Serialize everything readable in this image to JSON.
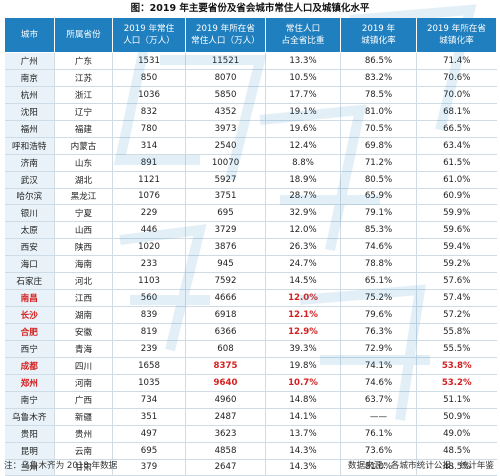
{
  "title": "图：2019 年主要省份及省会城市常住人口及城镇化水平",
  "headers": [
    "城市",
    "所属省份",
    "2019 年常住\n人口（万人）",
    "2019 年所在省\n常住人口（万人）",
    "常住人口\n占全省比重",
    "2019 年\n城镇化率",
    "2019 年所在省\n城镇化率"
  ],
  "rows": [
    [
      "广州",
      "广东",
      "1531",
      "11521",
      "13.3%",
      "86.5%",
      "71.4%"
    ],
    [
      "南京",
      "江苏",
      "850",
      "8070",
      "10.5%",
      "83.2%",
      "70.6%"
    ],
    [
      "杭州",
      "浙江",
      "1036",
      "5850",
      "17.7%",
      "78.5%",
      "70.0%"
    ],
    [
      "沈阳",
      "辽宁",
      "832",
      "4352",
      "19.1%",
      "81.0%",
      "68.1%"
    ],
    [
      "福州",
      "福建",
      "780",
      "3973",
      "19.6%",
      "70.5%",
      "66.5%"
    ],
    [
      "呼和浩特",
      "内蒙古",
      "314",
      "2540",
      "12.4%",
      "69.8%",
      "63.4%"
    ],
    [
      "济南",
      "山东",
      "891",
      "10070",
      "8.8%",
      "71.2%",
      "61.5%"
    ],
    [
      "武汉",
      "湖北",
      "1121",
      "5927",
      "18.9%",
      "80.5%",
      "61.0%"
    ],
    [
      "哈尔滨",
      "黑龙江",
      "1076",
      "3751",
      "28.7%",
      "65.9%",
      "60.9%"
    ],
    [
      "银川",
      "宁夏",
      "229",
      "695",
      "32.9%",
      "79.1%",
      "59.9%"
    ],
    [
      "太原",
      "山西",
      "446",
      "3729",
      "12.0%",
      "85.3%",
      "59.6%"
    ],
    [
      "西安",
      "陕西",
      "1020",
      "3876",
      "26.3%",
      "74.6%",
      "59.4%"
    ],
    [
      "海口",
      "海南",
      "233",
      "945",
      "24.7%",
      "78.8%",
      "59.2%"
    ],
    [
      "石家庄",
      "河北",
      "1103",
      "7592",
      "14.5%",
      "65.1%",
      "57.6%"
    ],
    [
      "南昌",
      "江西",
      "560",
      "4666",
      "12.0%",
      "75.2%",
      "57.4%"
    ],
    [
      "长沙",
      "湖南",
      "839",
      "6918",
      "12.1%",
      "79.6%",
      "57.2%"
    ],
    [
      "合肥",
      "安徽",
      "819",
      "6366",
      "12.9%",
      "76.3%",
      "55.8%"
    ],
    [
      "西宁",
      "青海",
      "239",
      "608",
      "39.3%",
      "72.9%",
      "55.5%"
    ],
    [
      "成都",
      "四川",
      "1658",
      "8375",
      "19.8%",
      "74.1%",
      "53.8%"
    ],
    [
      "郑州",
      "河南",
      "1035",
      "9640",
      "10.7%",
      "74.6%",
      "53.2%"
    ],
    [
      "南宁",
      "广西",
      "734",
      "4960",
      "14.8%",
      "63.7%",
      "51.1%"
    ],
    [
      "乌鲁木齐",
      "新疆",
      "351",
      "2487",
      "14.1%",
      "——",
      "50.9%"
    ],
    [
      "贵阳",
      "贵州",
      "497",
      "3623",
      "13.7%",
      "76.1%",
      "49.0%"
    ],
    [
      "昆明",
      "云南",
      "695",
      "4858",
      "14.3%",
      "73.6%",
      "48.5%"
    ],
    [
      "兰州",
      "甘肃",
      "379",
      "2647",
      "14.3%",
      "81.0%",
      "48.5%"
    ]
  ],
  "highlights": [
    {
      "row": 14,
      "cols": [
        0,
        4
      ]
    },
    {
      "row": 15,
      "cols": [
        0,
        4
      ]
    },
    {
      "row": 16,
      "cols": [
        0,
        4
      ]
    },
    {
      "row": 18,
      "cols": [
        0,
        3,
        6
      ]
    },
    {
      "row": 19,
      "cols": [
        0,
        3,
        4,
        6
      ]
    }
  ],
  "highlight_color": "#d62020",
  "header_color": "#1f7fbf",
  "footer": {
    "note": "注：乌鲁木齐为 2018 年数据",
    "source": "数据来源：各城市统计公报、统计年鉴"
  }
}
